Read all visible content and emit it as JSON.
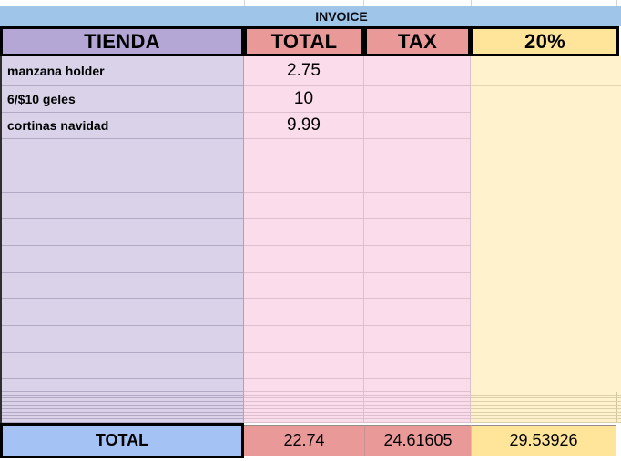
{
  "sheet": {
    "title": "INVOICE",
    "columns": [
      {
        "label": "TIENDA"
      },
      {
        "label": "TOTAL"
      },
      {
        "label": "TAX"
      },
      {
        "label": "20%"
      }
    ],
    "items": [
      {
        "tienda": "manzana holder",
        "total": "2.75",
        "tax": "",
        "pct": ""
      },
      {
        "tienda": "6/$10 geles",
        "total": "10",
        "tax": "",
        "pct": ""
      },
      {
        "tienda": "cortinas navidad",
        "total": "9.99",
        "tax": "",
        "pct": ""
      }
    ],
    "empty_row_count": 9,
    "short_row_count": 1,
    "thin_row_count": 9,
    "totals": {
      "label": "TOTAL",
      "total": "22.74",
      "tax": "24.61605",
      "pct": "29.53926"
    },
    "colors": {
      "title_band": "#9fc5e8",
      "header_tienda": "#b4a7d6",
      "header_total_tax": "#ea9999",
      "header_pct": "#ffe599",
      "body_tienda": "#d9d2e9",
      "body_total_tax": "#fbdcea",
      "body_pct": "#fff2cc",
      "totals_label_cell": "#a4c2f4",
      "totals_value_cells": "#ea9999",
      "totals_pct_cell": "#ffe599",
      "border": "#000000"
    }
  }
}
